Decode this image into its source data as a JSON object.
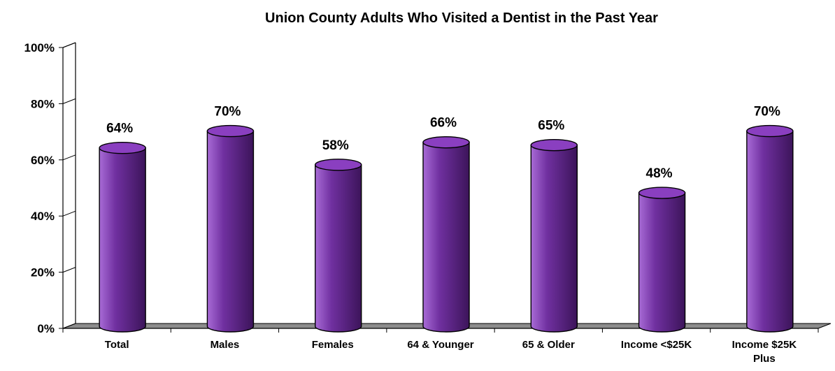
{
  "chart_data": {
    "type": "bar",
    "title": "Union County Adults Who Visited a Dentist in the Past Year",
    "categories": [
      "Total",
      "Males",
      "Females",
      "64 & Younger",
      "65 & Older",
      "Income <$25K",
      "Income $25K Plus"
    ],
    "category_lines": [
      [
        "Total"
      ],
      [
        "Males"
      ],
      [
        "Females"
      ],
      [
        "64 & Younger"
      ],
      [
        "65 & Older"
      ],
      [
        "Income <$25K"
      ],
      [
        "Income $25K",
        "Plus"
      ]
    ],
    "values": [
      64,
      70,
      58,
      66,
      65,
      48,
      70
    ],
    "value_labels": [
      "64%",
      "70%",
      "58%",
      "66%",
      "65%",
      "48%",
      "70%"
    ],
    "ylim": [
      0,
      100
    ],
    "yticks": [
      0,
      20,
      40,
      60,
      80,
      100
    ],
    "ytick_labels": [
      "0%",
      "20%",
      "40%",
      "60%",
      "80%",
      "100%"
    ],
    "xlabel": "",
    "ylabel": "",
    "grid": false,
    "legend": "none",
    "bar_shape": "cylinder",
    "colors": {
      "bar": "#7030a0",
      "bar_light": "#a86bd6",
      "bar_dark": "#3c145a",
      "bar_top": "#8a3fc0",
      "floor": "#8c8c8c",
      "axis": "#000000"
    }
  }
}
